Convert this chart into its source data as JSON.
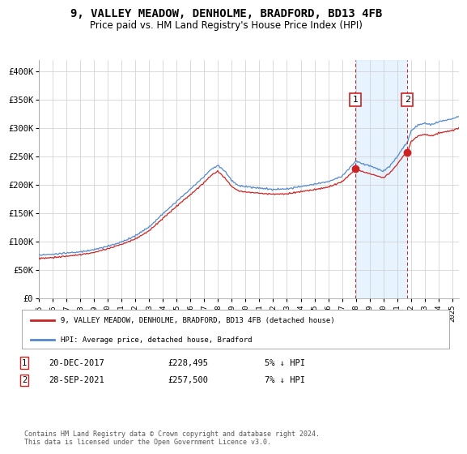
{
  "title": "9, VALLEY MEADOW, DENHOLME, BRADFORD, BD13 4FB",
  "subtitle": "Price paid vs. HM Land Registry's House Price Index (HPI)",
  "title_fontsize": 10,
  "subtitle_fontsize": 8.5,
  "background_color": "#ffffff",
  "plot_bg_color": "#ffffff",
  "grid_color": "#cccccc",
  "ylim": [
    0,
    420000
  ],
  "yticks": [
    0,
    50000,
    100000,
    150000,
    200000,
    250000,
    300000,
    350000,
    400000
  ],
  "ytick_labels": [
    "£0",
    "£50K",
    "£100K",
    "£150K",
    "£200K",
    "£250K",
    "£300K",
    "£350K",
    "£400K"
  ],
  "xlim_start": 1995.0,
  "xlim_end": 2025.5,
  "xtick_years": [
    1995,
    1996,
    1997,
    1998,
    1999,
    2000,
    2001,
    2002,
    2003,
    2004,
    2005,
    2006,
    2007,
    2008,
    2009,
    2010,
    2011,
    2012,
    2013,
    2014,
    2015,
    2016,
    2017,
    2018,
    2019,
    2020,
    2021,
    2022,
    2023,
    2024,
    2025
  ],
  "hpi_color": "#5588cc",
  "price_color": "#cc2222",
  "fill_color": "#ddeeff",
  "marker1_year": 2017.97,
  "marker1_value": 228495,
  "marker2_year": 2021.75,
  "marker2_value": 257500,
  "marker_vline_color": "#cc2222",
  "marker_box_border": "#cc2222",
  "legend_label_price": "9, VALLEY MEADOW, DENHOLME, BRADFORD, BD13 4FB (detached house)",
  "legend_label_hpi": "HPI: Average price, detached house, Bradford",
  "note1_label": "1",
  "note1_date": "20-DEC-2017",
  "note1_price": "£228,495",
  "note1_pct": "5% ↓ HPI",
  "note2_label": "2",
  "note2_date": "28-SEP-2021",
  "note2_price": "£257,500",
  "note2_pct": "7% ↓ HPI",
  "footer": "Contains HM Land Registry data © Crown copyright and database right 2024.\nThis data is licensed under the Open Government Licence v3.0."
}
